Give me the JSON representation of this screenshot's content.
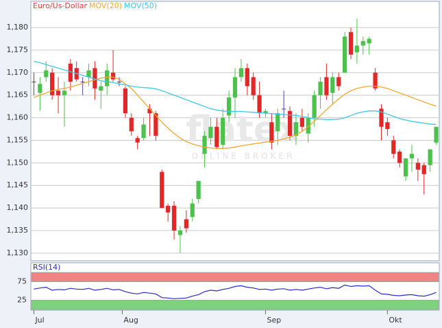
{
  "chart_data": [
    {
      "type": "candlestick",
      "title": "Euro/Us-Dollar",
      "title_color": "#e03c3c",
      "up_color": "#4cc24c",
      "down_color": "#e02828",
      "doji_color": "#5a3ca8",
      "open": [
        1.168,
        1.1655,
        1.169,
        1.17,
        1.166,
        1.165,
        1.172,
        1.171,
        1.168,
        1.169,
        1.171,
        1.166,
        1.167,
        1.17,
        1.168,
        1.1665,
        1.16,
        1.1555,
        1.1555,
        1.162,
        1.161,
        1.148,
        1.1405,
        1.1405,
        1.134,
        1.1375,
        1.138,
        1.142,
        1.152,
        1.1555,
        1.158,
        1.154,
        1.1605,
        1.1645,
        1.169,
        1.171,
        1.169,
        1.165,
        1.161,
        1.159,
        1.157,
        1.162,
        1.1615,
        1.156,
        1.16,
        1.1565,
        1.16,
        1.165,
        1.169,
        1.1655,
        1.169,
        1.17,
        1.179,
        1.1745,
        1.176,
        1.1765,
        1.17,
        1.162,
        1.159,
        1.155,
        1.1525,
        1.147,
        1.151,
        1.15,
        1.1495,
        1.1495,
        1.1545
      ],
      "high": [
        1.17,
        1.169,
        1.1725,
        1.171,
        1.169,
        1.168,
        1.173,
        1.1725,
        1.169,
        1.172,
        1.1725,
        1.168,
        1.172,
        1.175,
        1.169,
        1.167,
        1.161,
        1.156,
        1.16,
        1.163,
        1.1615,
        1.1485,
        1.141,
        1.1415,
        1.136,
        1.1395,
        1.142,
        1.146,
        1.157,
        1.16,
        1.16,
        1.162,
        1.166,
        1.171,
        1.173,
        1.172,
        1.17,
        1.168,
        1.162,
        1.161,
        1.162,
        1.166,
        1.1625,
        1.161,
        1.162,
        1.161,
        1.166,
        1.169,
        1.172,
        1.17,
        1.17,
        1.179,
        1.18,
        1.182,
        1.178,
        1.178,
        1.171,
        1.163,
        1.16,
        1.156,
        1.153,
        1.151,
        1.154,
        1.151,
        1.15,
        1.153,
        1.158
      ],
      "low": [
        1.165,
        1.1615,
        1.168,
        1.164,
        1.161,
        1.158,
        1.166,
        1.168,
        1.165,
        1.167,
        1.164,
        1.162,
        1.165,
        1.168,
        1.167,
        1.16,
        1.156,
        1.153,
        1.155,
        1.156,
        1.155,
        1.14,
        1.137,
        1.133,
        1.13,
        1.1345,
        1.137,
        1.141,
        1.149,
        1.154,
        1.153,
        1.153,
        1.159,
        1.16,
        1.168,
        1.165,
        1.164,
        1.16,
        1.16,
        1.153,
        1.154,
        1.16,
        1.155,
        1.154,
        1.157,
        1.1545,
        1.158,
        1.162,
        1.164,
        1.163,
        1.166,
        1.17,
        1.173,
        1.172,
        1.174,
        1.174,
        1.166,
        1.155,
        1.156,
        1.151,
        1.149,
        1.146,
        1.148,
        1.146,
        1.143,
        1.148,
        1.154
      ],
      "close": [
        1.168,
        1.1675,
        1.1705,
        1.165,
        1.165,
        1.166,
        1.168,
        1.1685,
        1.168,
        1.1705,
        1.1665,
        1.167,
        1.1705,
        1.1685,
        1.168,
        1.161,
        1.157,
        1.1545,
        1.1585,
        1.161,
        1.156,
        1.14,
        1.139,
        1.135,
        1.135,
        1.1355,
        1.141,
        1.146,
        1.156,
        1.158,
        1.1535,
        1.16,
        1.1645,
        1.169,
        1.171,
        1.167,
        1.165,
        1.161,
        1.1615,
        1.1545,
        1.161,
        1.162,
        1.156,
        1.159,
        1.158,
        1.16,
        1.165,
        1.168,
        1.165,
        1.169,
        1.167,
        1.178,
        1.174,
        1.176,
        1.177,
        1.1775,
        1.1665,
        1.158,
        1.1575,
        1.152,
        1.15,
        1.151,
        1.152,
        1.1485,
        1.1475,
        1.153,
        1.158
      ],
      "series": [
        {
          "name": "MOV(20)",
          "color": "#f0a830",
          "values": [
            1.1645,
            1.165,
            1.1655,
            1.166,
            1.1663,
            1.1665,
            1.1668,
            1.1672,
            1.1676,
            1.168,
            1.1684,
            1.1688,
            1.169,
            1.169,
            1.1685,
            1.1675,
            1.1665,
            1.165,
            1.1635,
            1.162,
            1.1605,
            1.159,
            1.1577,
            1.1565,
            1.1555,
            1.1547,
            1.1542,
            1.1538,
            1.1535,
            1.1533,
            1.1532,
            1.1532,
            1.1533,
            1.1535,
            1.1538,
            1.154,
            1.1542,
            1.1544,
            1.1546,
            1.1548,
            1.155,
            1.1553,
            1.1557,
            1.1562,
            1.157,
            1.158,
            1.1592,
            1.1605,
            1.1618,
            1.163,
            1.1642,
            1.1652,
            1.166,
            1.1665,
            1.1668,
            1.167,
            1.167,
            1.1668,
            1.1665,
            1.166,
            1.1655,
            1.165,
            1.1645,
            1.164,
            1.1635,
            1.163,
            1.1626
          ]
        },
        {
          "name": "MOV(50)",
          "color": "#3cc8e6",
          "values": [
            1.1725,
            1.1722,
            1.1718,
            1.1714,
            1.171,
            1.1706,
            1.1702,
            1.1698,
            1.1694,
            1.169,
            1.1686,
            1.1682,
            1.168,
            1.1678,
            1.1675,
            1.1673,
            1.167,
            1.1668,
            1.1667,
            1.1666,
            1.1664,
            1.166,
            1.1655,
            1.165,
            1.1645,
            1.164,
            1.1635,
            1.163,
            1.1625,
            1.162,
            1.1617,
            1.1615,
            1.1614,
            1.1614,
            1.1614,
            1.1613,
            1.1612,
            1.1611,
            1.161,
            1.1609,
            1.1608,
            1.1607,
            1.1606,
            1.1605,
            1.1603,
            1.16,
            1.1598,
            1.1597,
            1.1596,
            1.1596,
            1.1597,
            1.16,
            1.1605,
            1.161,
            1.1613,
            1.1615,
            1.1615,
            1.1613,
            1.1608,
            1.1603,
            1.1598,
            1.1595,
            1.1592,
            1.159,
            1.1588,
            1.1586,
            1.1585
          ]
        }
      ],
      "ylim": [
        1.1283,
        1.1858
      ],
      "yticks": [
        {
          "value": 1.13,
          "label": "1,130"
        },
        {
          "value": 1.135,
          "label": "1,135"
        },
        {
          "value": 1.14,
          "label": "1,140"
        },
        {
          "value": 1.145,
          "label": "1,145"
        },
        {
          "value": 1.15,
          "label": "1,150"
        },
        {
          "value": 1.155,
          "label": "1,155"
        },
        {
          "value": 1.16,
          "label": "1,160"
        },
        {
          "value": 1.165,
          "label": "1,165"
        },
        {
          "value": 1.17,
          "label": "1,170"
        },
        {
          "value": 1.175,
          "label": "1,175"
        },
        {
          "value": 1.18,
          "label": "1,180"
        }
      ],
      "xlim": [
        -0.5,
        66.5
      ],
      "xticks": [
        {
          "value": 0,
          "label": "Jul"
        },
        {
          "value": 14.5,
          "label": "Aug"
        },
        {
          "value": 38,
          "label": "Sep"
        },
        {
          "value": 58,
          "label": "Okt"
        }
      ],
      "grid": true,
      "watermark": [
        "flatex",
        "ONLINE BROKER"
      ]
    },
    {
      "type": "line",
      "title": "RSI(14)",
      "color": "#2828c8",
      "values": [
        55,
        58,
        60,
        52,
        54,
        53,
        57,
        55,
        54,
        57,
        52,
        54,
        57,
        53,
        54,
        48,
        44,
        42,
        46,
        44,
        42,
        32,
        31,
        29,
        30,
        31,
        36,
        40,
        48,
        52,
        50,
        54,
        57,
        62,
        64,
        60,
        58,
        54,
        55,
        52,
        55,
        56,
        52,
        54,
        52,
        55,
        58,
        60,
        56,
        59,
        57,
        66,
        62,
        64,
        63,
        64,
        52,
        42,
        41,
        38,
        37,
        39,
        40,
        37,
        36,
        40,
        46
      ],
      "ylim": [
        0,
        100
      ],
      "yticks": [
        25,
        75
      ],
      "bands": [
        {
          "from": 75,
          "to": 100,
          "color": "#f08484"
        },
        {
          "from": 0,
          "to": 25,
          "color": "#7ed27e"
        }
      ]
    }
  ]
}
